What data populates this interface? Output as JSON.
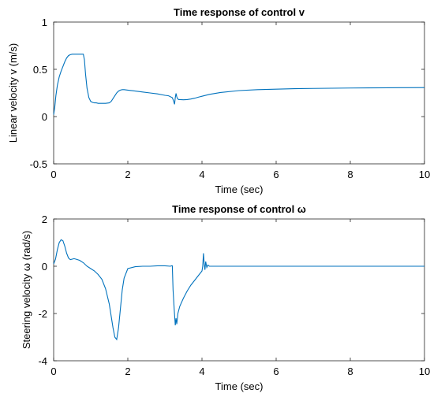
{
  "chart_data": [
    {
      "type": "line",
      "title": "Time response of control v",
      "xlabel": "Time (sec)",
      "ylabel": "Linear velocity v (m/s)",
      "xlim": [
        0,
        10
      ],
      "ylim": [
        -0.5,
        1
      ],
      "xticks": [
        0,
        2,
        4,
        6,
        8,
        10
      ],
      "yticks": [
        -0.5,
        0,
        0.5,
        1
      ],
      "xtick_labels": [
        "0",
        "2",
        "4",
        "6",
        "8",
        "10"
      ],
      "ytick_labels": [
        "-0.5",
        "0",
        "0.5",
        "1"
      ],
      "grid": false,
      "line_color": "#0072BD",
      "series": [
        {
          "x": [
            0,
            0.03,
            0.06,
            0.1,
            0.15,
            0.2,
            0.25,
            0.3,
            0.35,
            0.4,
            0.45,
            0.5,
            0.55,
            0.6,
            0.65,
            0.7,
            0.75,
            0.8,
            0.83,
            0.86,
            0.9,
            0.95,
            1.0,
            1.05,
            1.1,
            1.15,
            1.2,
            1.3,
            1.4,
            1.5,
            1.55,
            1.6,
            1.65,
            1.7,
            1.75,
            1.8,
            1.85,
            1.9,
            2.0,
            2.2,
            2.4,
            2.6,
            2.8,
            3.0,
            3.1,
            3.2,
            3.23,
            3.26,
            3.28,
            3.3,
            3.32,
            3.34,
            3.37,
            3.4,
            3.5,
            3.6,
            3.7,
            3.8,
            3.9,
            4.0,
            4.2,
            4.5,
            5.0,
            5.5,
            6.0,
            6.5,
            7.0,
            7.5,
            8.0,
            8.5,
            9.0,
            9.5,
            10.0
          ],
          "y": [
            0.02,
            0.1,
            0.22,
            0.33,
            0.42,
            0.48,
            0.53,
            0.58,
            0.62,
            0.645,
            0.655,
            0.66,
            0.66,
            0.66,
            0.66,
            0.66,
            0.66,
            0.66,
            0.6,
            0.45,
            0.3,
            0.2,
            0.16,
            0.15,
            0.145,
            0.145,
            0.14,
            0.14,
            0.14,
            0.145,
            0.16,
            0.19,
            0.22,
            0.25,
            0.27,
            0.28,
            0.285,
            0.285,
            0.28,
            0.27,
            0.26,
            0.25,
            0.24,
            0.225,
            0.22,
            0.2,
            0.17,
            0.13,
            0.2,
            0.245,
            0.21,
            0.19,
            0.18,
            0.18,
            0.178,
            0.18,
            0.186,
            0.194,
            0.205,
            0.215,
            0.235,
            0.255,
            0.275,
            0.285,
            0.29,
            0.295,
            0.298,
            0.3,
            0.302,
            0.304,
            0.305,
            0.306,
            0.307
          ]
        }
      ]
    },
    {
      "type": "line",
      "title": "Time response of control ω",
      "xlabel": "Time (sec)",
      "ylabel": "Steering velocity ω (rad/s)",
      "xlim": [
        0,
        10
      ],
      "ylim": [
        -4,
        2
      ],
      "xticks": [
        0,
        2,
        4,
        6,
        8,
        10
      ],
      "yticks": [
        -4,
        -2,
        0,
        2
      ],
      "xtick_labels": [
        "0",
        "2",
        "4",
        "6",
        "8",
        "10"
      ],
      "ytick_labels": [
        "-4",
        "-2",
        "0",
        "2"
      ],
      "grid": false,
      "line_color": "#0072BD",
      "series": [
        {
          "x": [
            0,
            0.05,
            0.1,
            0.15,
            0.2,
            0.25,
            0.3,
            0.35,
            0.4,
            0.45,
            0.5,
            0.55,
            0.6,
            0.7,
            0.8,
            0.9,
            1.0,
            1.1,
            1.2,
            1.3,
            1.4,
            1.5,
            1.55,
            1.6,
            1.65,
            1.7,
            1.75,
            1.8,
            1.85,
            1.9,
            2.0,
            2.2,
            2.4,
            2.6,
            2.8,
            3.0,
            3.15,
            3.18,
            3.2,
            3.22,
            3.25,
            3.28,
            3.3,
            3.32,
            3.35,
            3.4,
            3.5,
            3.6,
            3.7,
            3.8,
            3.9,
            3.95,
            4.0,
            4.02,
            4.04,
            4.06,
            4.08,
            4.1,
            4.13,
            4.16,
            4.2,
            4.5,
            5.0,
            6.0,
            7.0,
            8.0,
            9.0,
            10.0
          ],
          "y": [
            0.1,
            0.3,
            0.7,
            1.0,
            1.12,
            1.08,
            0.85,
            0.55,
            0.35,
            0.28,
            0.3,
            0.32,
            0.3,
            0.25,
            0.15,
            0.0,
            -0.1,
            -0.2,
            -0.35,
            -0.55,
            -0.95,
            -1.6,
            -2.1,
            -2.6,
            -3.0,
            -3.1,
            -2.6,
            -1.8,
            -1.0,
            -0.5,
            -0.1,
            -0.02,
            0.0,
            0.0,
            0.02,
            0.02,
            0.0,
            0.02,
            0.02,
            -1.0,
            -1.8,
            -2.5,
            -2.2,
            -2.45,
            -2.0,
            -1.7,
            -1.35,
            -1.05,
            -0.8,
            -0.6,
            -0.4,
            -0.3,
            -0.2,
            0.0,
            0.55,
            0.1,
            -0.15,
            0.2,
            -0.05,
            0.05,
            0.0,
            0.0,
            0.0,
            0.0,
            0.0,
            0.0,
            0.0,
            0.0
          ]
        }
      ]
    }
  ]
}
